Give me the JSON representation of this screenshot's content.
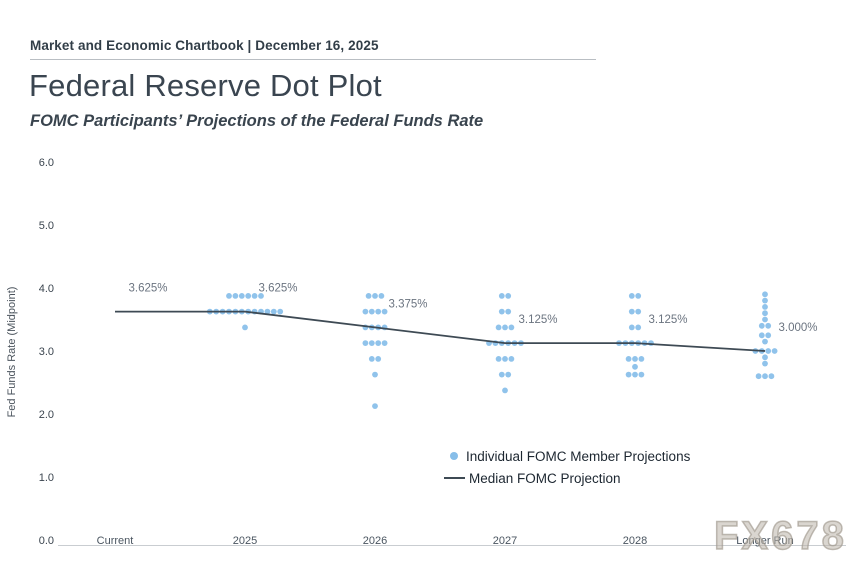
{
  "header": {
    "kicker": "Market and Economic Chartbook | December 16, 2025"
  },
  "title": "Federal Reserve Dot Plot",
  "subtitle": "FOMC Participants’ Projections of the Federal Funds Rate",
  "legend": {
    "dot_label": "Individual FOMC Member Projections",
    "line_label": "Median FOMC Projection"
  },
  "watermark": "FX678",
  "colors": {
    "dot": "#87bee9",
    "median_line": "#3e4a54",
    "axis": "#c9cdd1",
    "median_label": "#6b7480",
    "tick_text": "#3a444e",
    "category_text": "#4a5560",
    "ylabel_text": "#4a535c"
  },
  "chart_data": {
    "type": "scatter",
    "title": "Federal Reserve Dot Plot",
    "subtitle": "FOMC Participants' Projections of the Federal Funds Rate",
    "ylabel": "Fed Funds Rate (Midpoint)",
    "ylim": [
      0.0,
      6.0
    ],
    "yticks": [
      {
        "value": 6.0,
        "label": "6.0"
      },
      {
        "value": 5.0,
        "label": "5.0"
      },
      {
        "value": 4.0,
        "label": "4.0"
      },
      {
        "value": 3.0,
        "label": "3.0"
      },
      {
        "value": 2.0,
        "label": "2.0"
      },
      {
        "value": 1.0,
        "label": "1.0"
      },
      {
        "value": 0.0,
        "label": "0.0"
      }
    ],
    "categories": [
      "Current",
      "2025",
      "2026",
      "2027",
      "2028",
      "Longer Run"
    ],
    "grid": false,
    "legend_position": "lower-center-right",
    "median_series": {
      "name": "Median FOMC Projection",
      "values": [
        3.625,
        3.625,
        3.375,
        3.125,
        3.125,
        3.0
      ]
    },
    "median_labels": [
      "3.625%",
      "3.625%",
      "3.375%",
      "3.125%",
      "3.125%",
      "3.000%"
    ],
    "dot_series_name": "Individual FOMC Member Projections",
    "dots": [
      {
        "category": "Current",
        "points": []
      },
      {
        "category": "2025",
        "points": [
          {
            "value": 3.875,
            "count": 6
          },
          {
            "value": 3.625,
            "count": 12
          },
          {
            "value": 3.375,
            "count": 1
          }
        ]
      },
      {
        "category": "2026",
        "points": [
          {
            "value": 3.875,
            "count": 3
          },
          {
            "value": 3.625,
            "count": 4
          },
          {
            "value": 3.375,
            "count": 4
          },
          {
            "value": 3.125,
            "count": 4
          },
          {
            "value": 2.875,
            "count": 2
          },
          {
            "value": 2.625,
            "count": 1
          },
          {
            "value": 2.125,
            "count": 1
          }
        ]
      },
      {
        "category": "2027",
        "points": [
          {
            "value": 3.875,
            "count": 2
          },
          {
            "value": 3.625,
            "count": 2
          },
          {
            "value": 3.375,
            "count": 3
          },
          {
            "value": 3.125,
            "count": 6
          },
          {
            "value": 2.875,
            "count": 3
          },
          {
            "value": 2.625,
            "count": 2
          },
          {
            "value": 2.375,
            "count": 1
          }
        ]
      },
      {
        "category": "2028",
        "points": [
          {
            "value": 3.875,
            "count": 2
          },
          {
            "value": 3.625,
            "count": 2
          },
          {
            "value": 3.375,
            "count": 2
          },
          {
            "value": 3.125,
            "count": 6
          },
          {
            "value": 2.875,
            "count": 3
          },
          {
            "value": 2.75,
            "count": 1
          },
          {
            "value": 2.625,
            "count": 3
          }
        ]
      },
      {
        "category": "Longer Run",
        "points": [
          {
            "value": 3.9,
            "count": 1
          },
          {
            "value": 3.8,
            "count": 1
          },
          {
            "value": 3.7,
            "count": 1
          },
          {
            "value": 3.6,
            "count": 1
          },
          {
            "value": 3.5,
            "count": 1
          },
          {
            "value": 3.4,
            "count": 2
          },
          {
            "value": 3.25,
            "count": 2
          },
          {
            "value": 3.15,
            "count": 1
          },
          {
            "value": 3.0,
            "count": 4
          },
          {
            "value": 2.9,
            "count": 1
          },
          {
            "value": 2.8,
            "count": 1
          },
          {
            "value": 2.6,
            "count": 3
          }
        ]
      }
    ]
  }
}
